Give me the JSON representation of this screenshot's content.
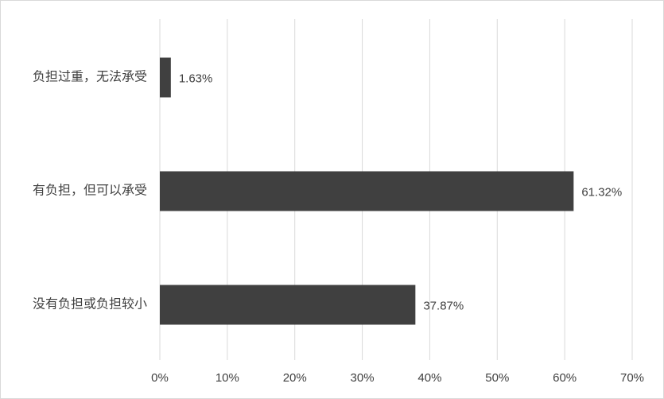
{
  "chart_data": {
    "type": "barh",
    "categories": [
      "负担过重，无法承受",
      "有负担，但可以承受",
      "没有负担或负担较小"
    ],
    "values": [
      1.63,
      61.32,
      37.87
    ],
    "value_labels": [
      "1.63%",
      "61.32%",
      "37.87%"
    ],
    "color": "#404040",
    "xlim": [
      0,
      70
    ],
    "xticks": [
      {
        "value": 0,
        "label": "0%"
      },
      {
        "value": 10,
        "label": "10%"
      },
      {
        "value": 20,
        "label": "20%"
      },
      {
        "value": 30,
        "label": "30%"
      },
      {
        "value": 40,
        "label": "40%"
      },
      {
        "value": 50,
        "label": "50%"
      },
      {
        "value": 60,
        "label": "60%"
      },
      {
        "value": 70,
        "label": "70%"
      }
    ],
    "grid": true
  }
}
